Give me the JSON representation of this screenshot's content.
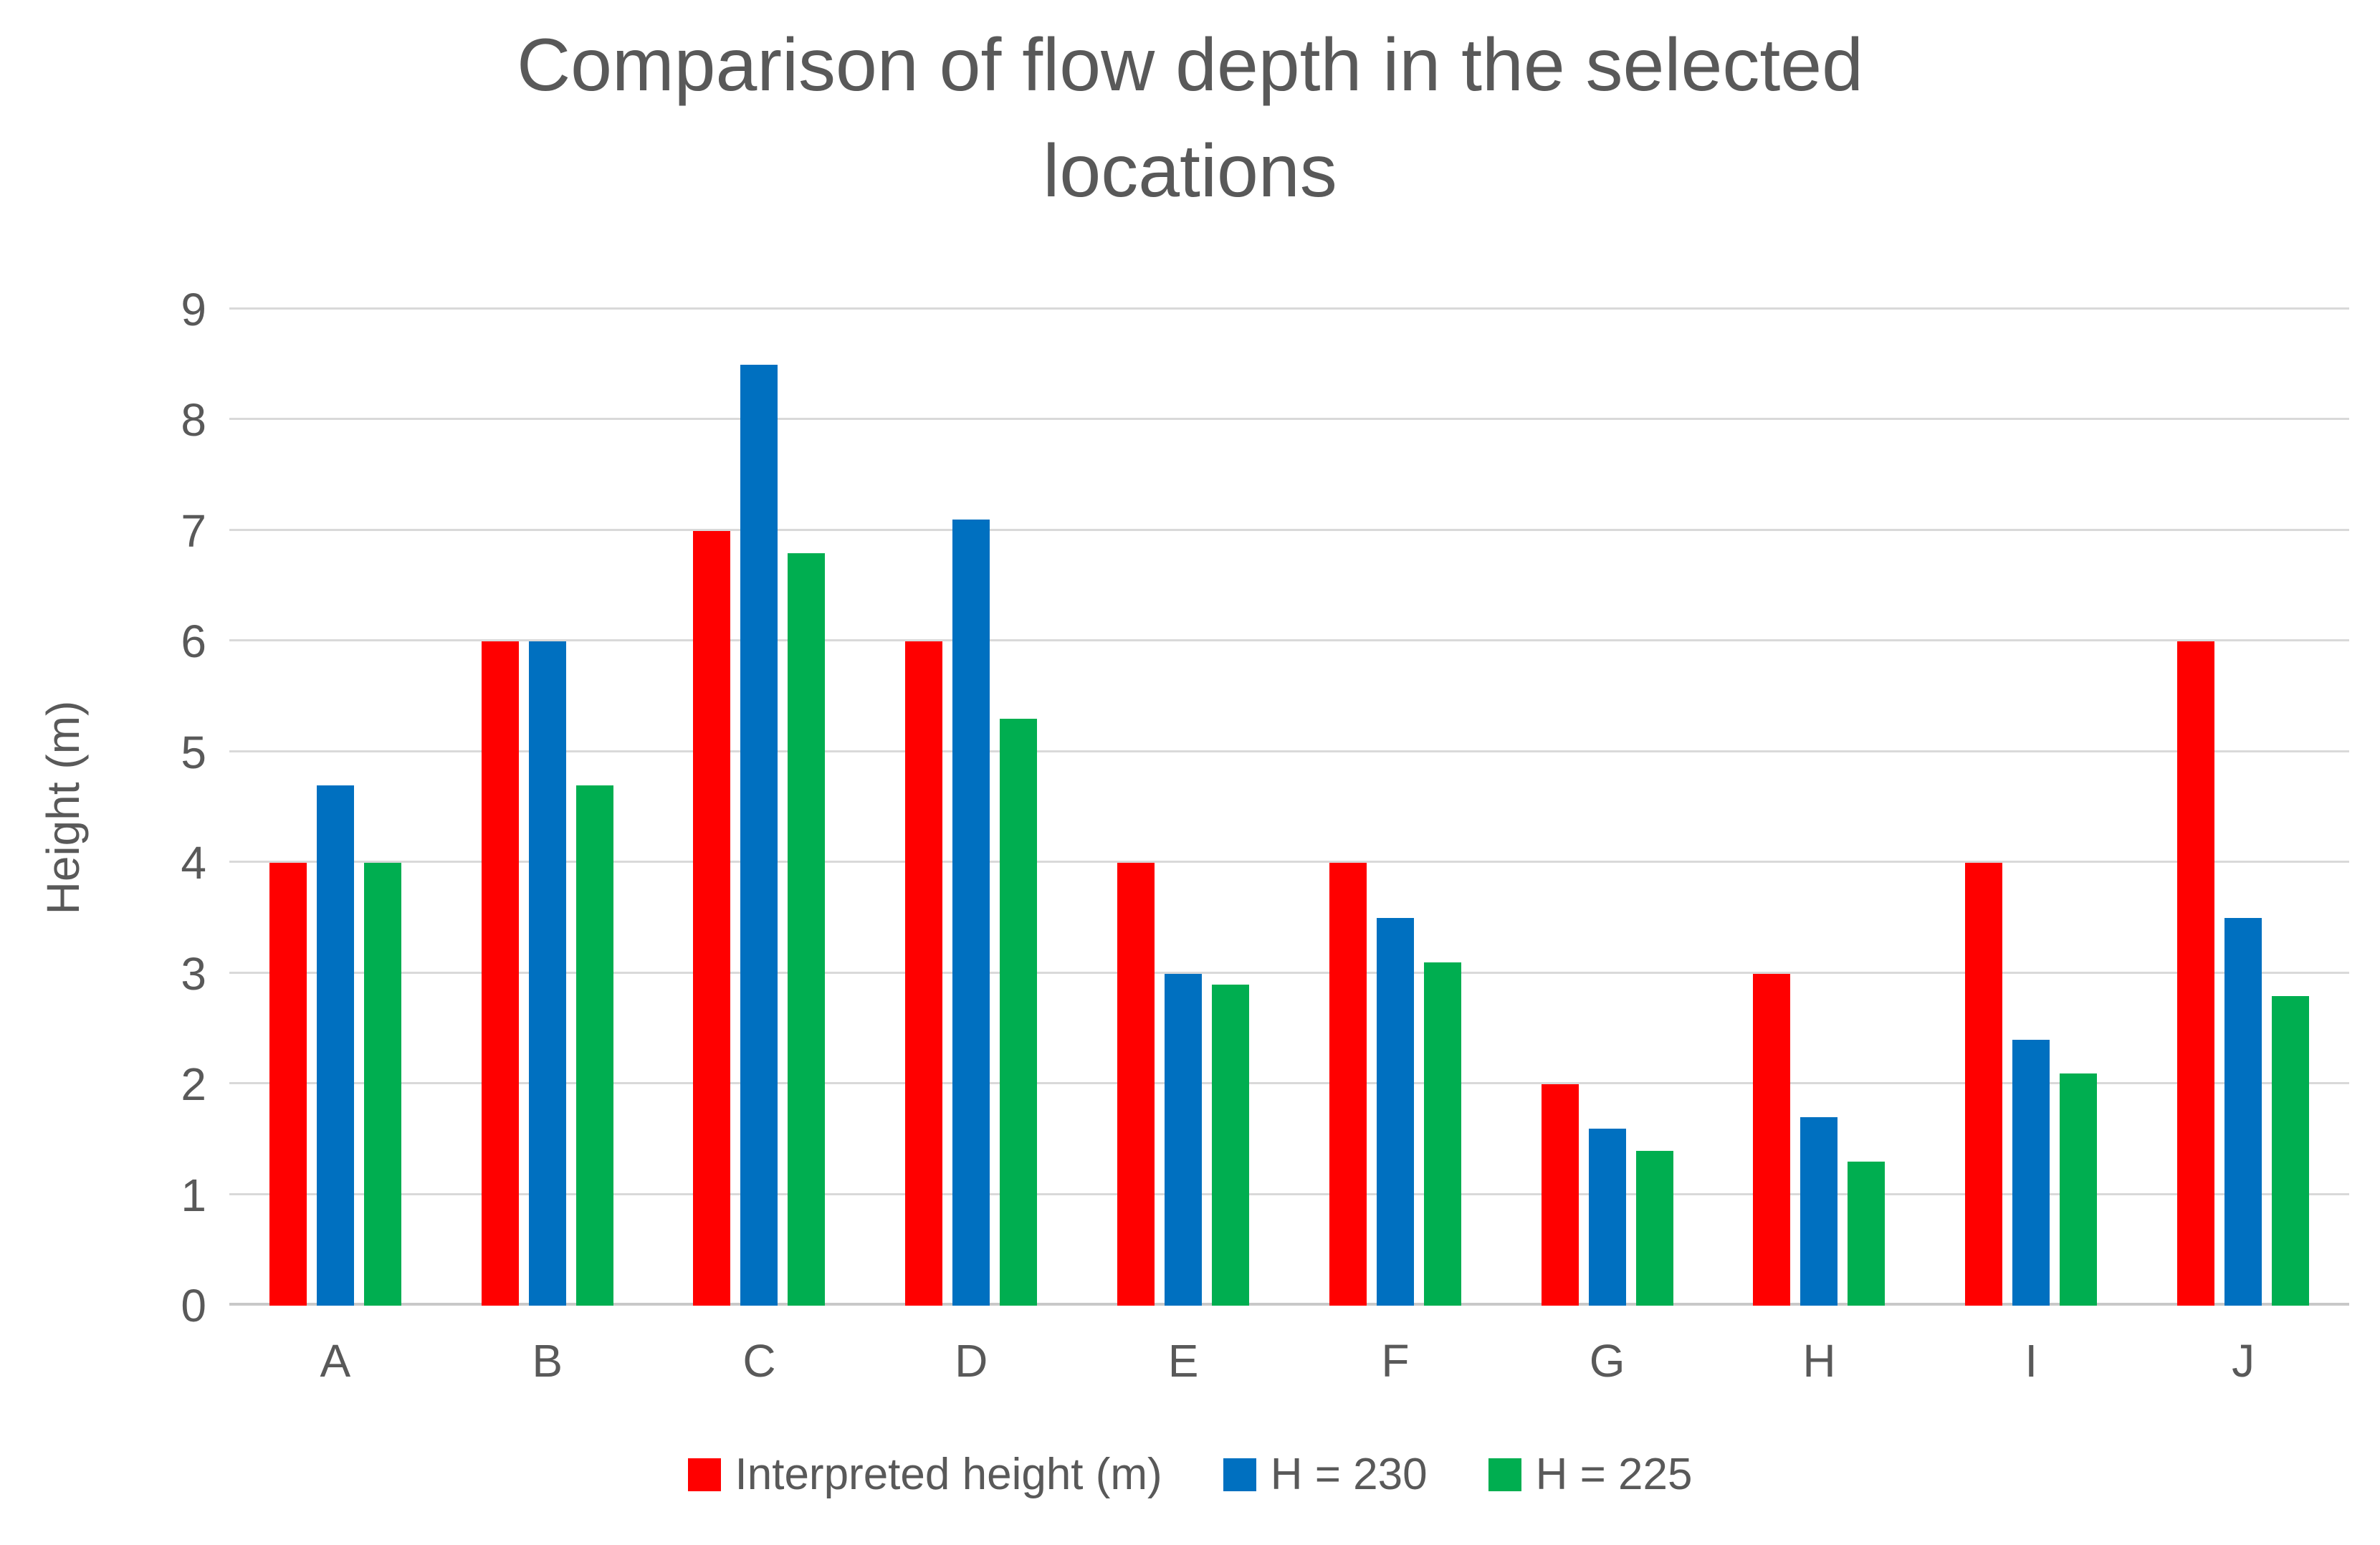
{
  "display": {
    "title_line1": "Comparison of flow depth in the selected",
    "title_line2": "locations"
  },
  "chart_data": {
    "type": "bar",
    "title": "Comparison of flow depth in the selected locations",
    "xlabel": "",
    "ylabel": "Height (m)",
    "categories": [
      "A",
      "B",
      "C",
      "D",
      "E",
      "F",
      "G",
      "H",
      "I",
      "J"
    ],
    "series": [
      {
        "name": "Interpreted height (m)",
        "color": "#FF0000",
        "values": [
          4.0,
          6.0,
          7.0,
          6.0,
          4.0,
          4.0,
          2.0,
          3.0,
          4.0,
          6.0
        ]
      },
      {
        "name": "H = 230",
        "color": "#0070C0",
        "values": [
          4.7,
          6.0,
          8.5,
          7.1,
          3.0,
          3.5,
          1.6,
          1.7,
          2.4,
          3.5
        ]
      },
      {
        "name": "H = 225",
        "color": "#00AE50",
        "values": [
          4.0,
          4.7,
          6.8,
          5.3,
          2.9,
          3.1,
          1.4,
          1.3,
          2.1,
          2.8
        ]
      }
    ],
    "ylim": [
      0,
      9
    ],
    "ytick_step": 1,
    "grid": true,
    "legend_position": "bottom",
    "colors": {
      "grid": "#D9D9D9",
      "axis": "#C8C8C8",
      "text": "#595959"
    }
  }
}
